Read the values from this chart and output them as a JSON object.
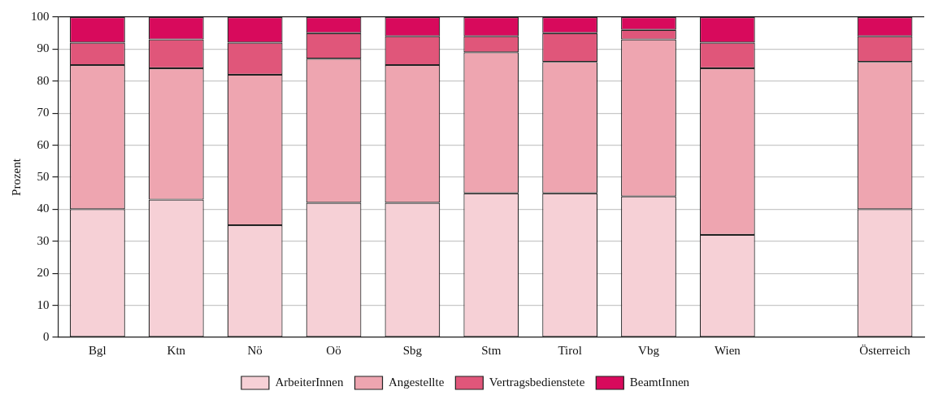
{
  "chart_data": {
    "type": "bar",
    "stacked": true,
    "ylabel": "Prozent",
    "categories": [
      "Bgl",
      "Ktn",
      "Nö",
      "Oö",
      "Sbg",
      "Stm",
      "Tirol",
      "Vbg",
      "Wien",
      null,
      "Österreich"
    ],
    "series": [
      {
        "name": "ArbeiterInnen",
        "color": "#f6d0d6",
        "values": [
          40,
          43,
          35,
          42,
          42,
          45,
          45,
          44,
          32,
          null,
          40
        ]
      },
      {
        "name": "Angestellte",
        "color": "#eea5b0",
        "values": [
          45,
          41,
          47,
          45,
          43,
          44,
          41,
          49,
          52,
          null,
          46
        ]
      },
      {
        "name": "Vertragsbedienstete",
        "color": "#e0567a",
        "values": [
          7,
          9,
          10,
          8,
          9,
          5,
          9,
          3,
          8,
          null,
          8
        ]
      },
      {
        "name": "BeamtInnen",
        "color": "#d80a5c",
        "values": [
          8,
          7,
          8,
          5,
          6,
          6,
          5,
          4,
          8,
          null,
          6
        ]
      }
    ],
    "ylim": [
      0,
      100
    ],
    "yticks": [
      0,
      10,
      20,
      30,
      40,
      50,
      60,
      70,
      80,
      90,
      100
    ],
    "grid": "y",
    "legend": "bottom"
  }
}
